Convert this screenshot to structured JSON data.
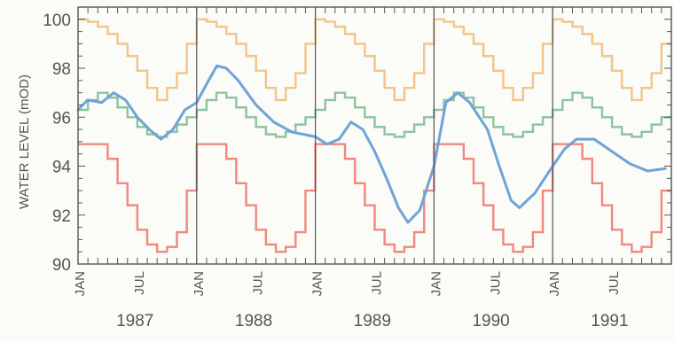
{
  "chart_data": {
    "type": "line",
    "title": "",
    "xlabel": "",
    "ylabel": "WATER LEVEL (mOD)",
    "ylim": [
      90,
      100.5
    ],
    "yticks": [
      90,
      92,
      94,
      96,
      98,
      100
    ],
    "years": [
      "1987",
      "1988",
      "1989",
      "1990",
      "1991"
    ],
    "month_labels": [
      "JAN",
      "JUL"
    ],
    "grid": false,
    "colors": {
      "upper": "#f2c48a",
      "mean": "#8cc49e",
      "lower": "#f0887e",
      "observed": "#6ea4d6",
      "frame": "#555555"
    },
    "series": [
      {
        "key": "upper",
        "step": true,
        "monthly_values": [
          100.0,
          99.9,
          99.7,
          99.4,
          99.0,
          98.5,
          97.9,
          97.2,
          96.7,
          97.2,
          97.8,
          99.0
        ]
      },
      {
        "key": "mean",
        "step": true,
        "monthly_values": [
          96.3,
          96.7,
          97.0,
          96.8,
          96.4,
          96.0,
          95.6,
          95.3,
          95.2,
          95.4,
          95.7,
          96.0
        ]
      },
      {
        "key": "lower",
        "step": true,
        "monthly_values": [
          94.9,
          94.9,
          94.9,
          94.3,
          93.3,
          92.4,
          91.4,
          90.8,
          90.5,
          90.7,
          91.3,
          93.0
        ]
      },
      {
        "key": "observed",
        "step": false,
        "points": [
          [
            1987.0,
            96.3
          ],
          [
            1987.08,
            96.7
          ],
          [
            1987.2,
            96.6
          ],
          [
            1987.3,
            97.0
          ],
          [
            1987.4,
            96.7
          ],
          [
            1987.5,
            96.0
          ],
          [
            1987.6,
            95.5
          ],
          [
            1987.7,
            95.1
          ],
          [
            1987.8,
            95.5
          ],
          [
            1987.9,
            96.3
          ],
          [
            1988.0,
            96.6
          ],
          [
            1988.1,
            97.5
          ],
          [
            1988.17,
            98.1
          ],
          [
            1988.25,
            98.0
          ],
          [
            1988.35,
            97.5
          ],
          [
            1988.5,
            96.5
          ],
          [
            1988.65,
            95.8
          ],
          [
            1988.8,
            95.4
          ],
          [
            1989.0,
            95.2
          ],
          [
            1989.1,
            94.9
          ],
          [
            1989.2,
            95.1
          ],
          [
            1989.3,
            95.8
          ],
          [
            1989.4,
            95.5
          ],
          [
            1989.5,
            94.6
          ],
          [
            1989.6,
            93.5
          ],
          [
            1989.7,
            92.3
          ],
          [
            1989.78,
            91.7
          ],
          [
            1989.88,
            92.2
          ],
          [
            1990.0,
            94.0
          ],
          [
            1990.1,
            96.6
          ],
          [
            1990.2,
            97.0
          ],
          [
            1990.3,
            96.6
          ],
          [
            1990.45,
            95.5
          ],
          [
            1990.55,
            94.0
          ],
          [
            1990.65,
            92.6
          ],
          [
            1990.72,
            92.3
          ],
          [
            1990.85,
            92.9
          ],
          [
            1991.0,
            94.0
          ],
          [
            1991.1,
            94.7
          ],
          [
            1991.2,
            95.1
          ],
          [
            1991.35,
            95.1
          ],
          [
            1991.5,
            94.6
          ],
          [
            1991.65,
            94.1
          ],
          [
            1991.8,
            93.8
          ],
          [
            1991.95,
            93.9
          ]
        ]
      }
    ]
  }
}
